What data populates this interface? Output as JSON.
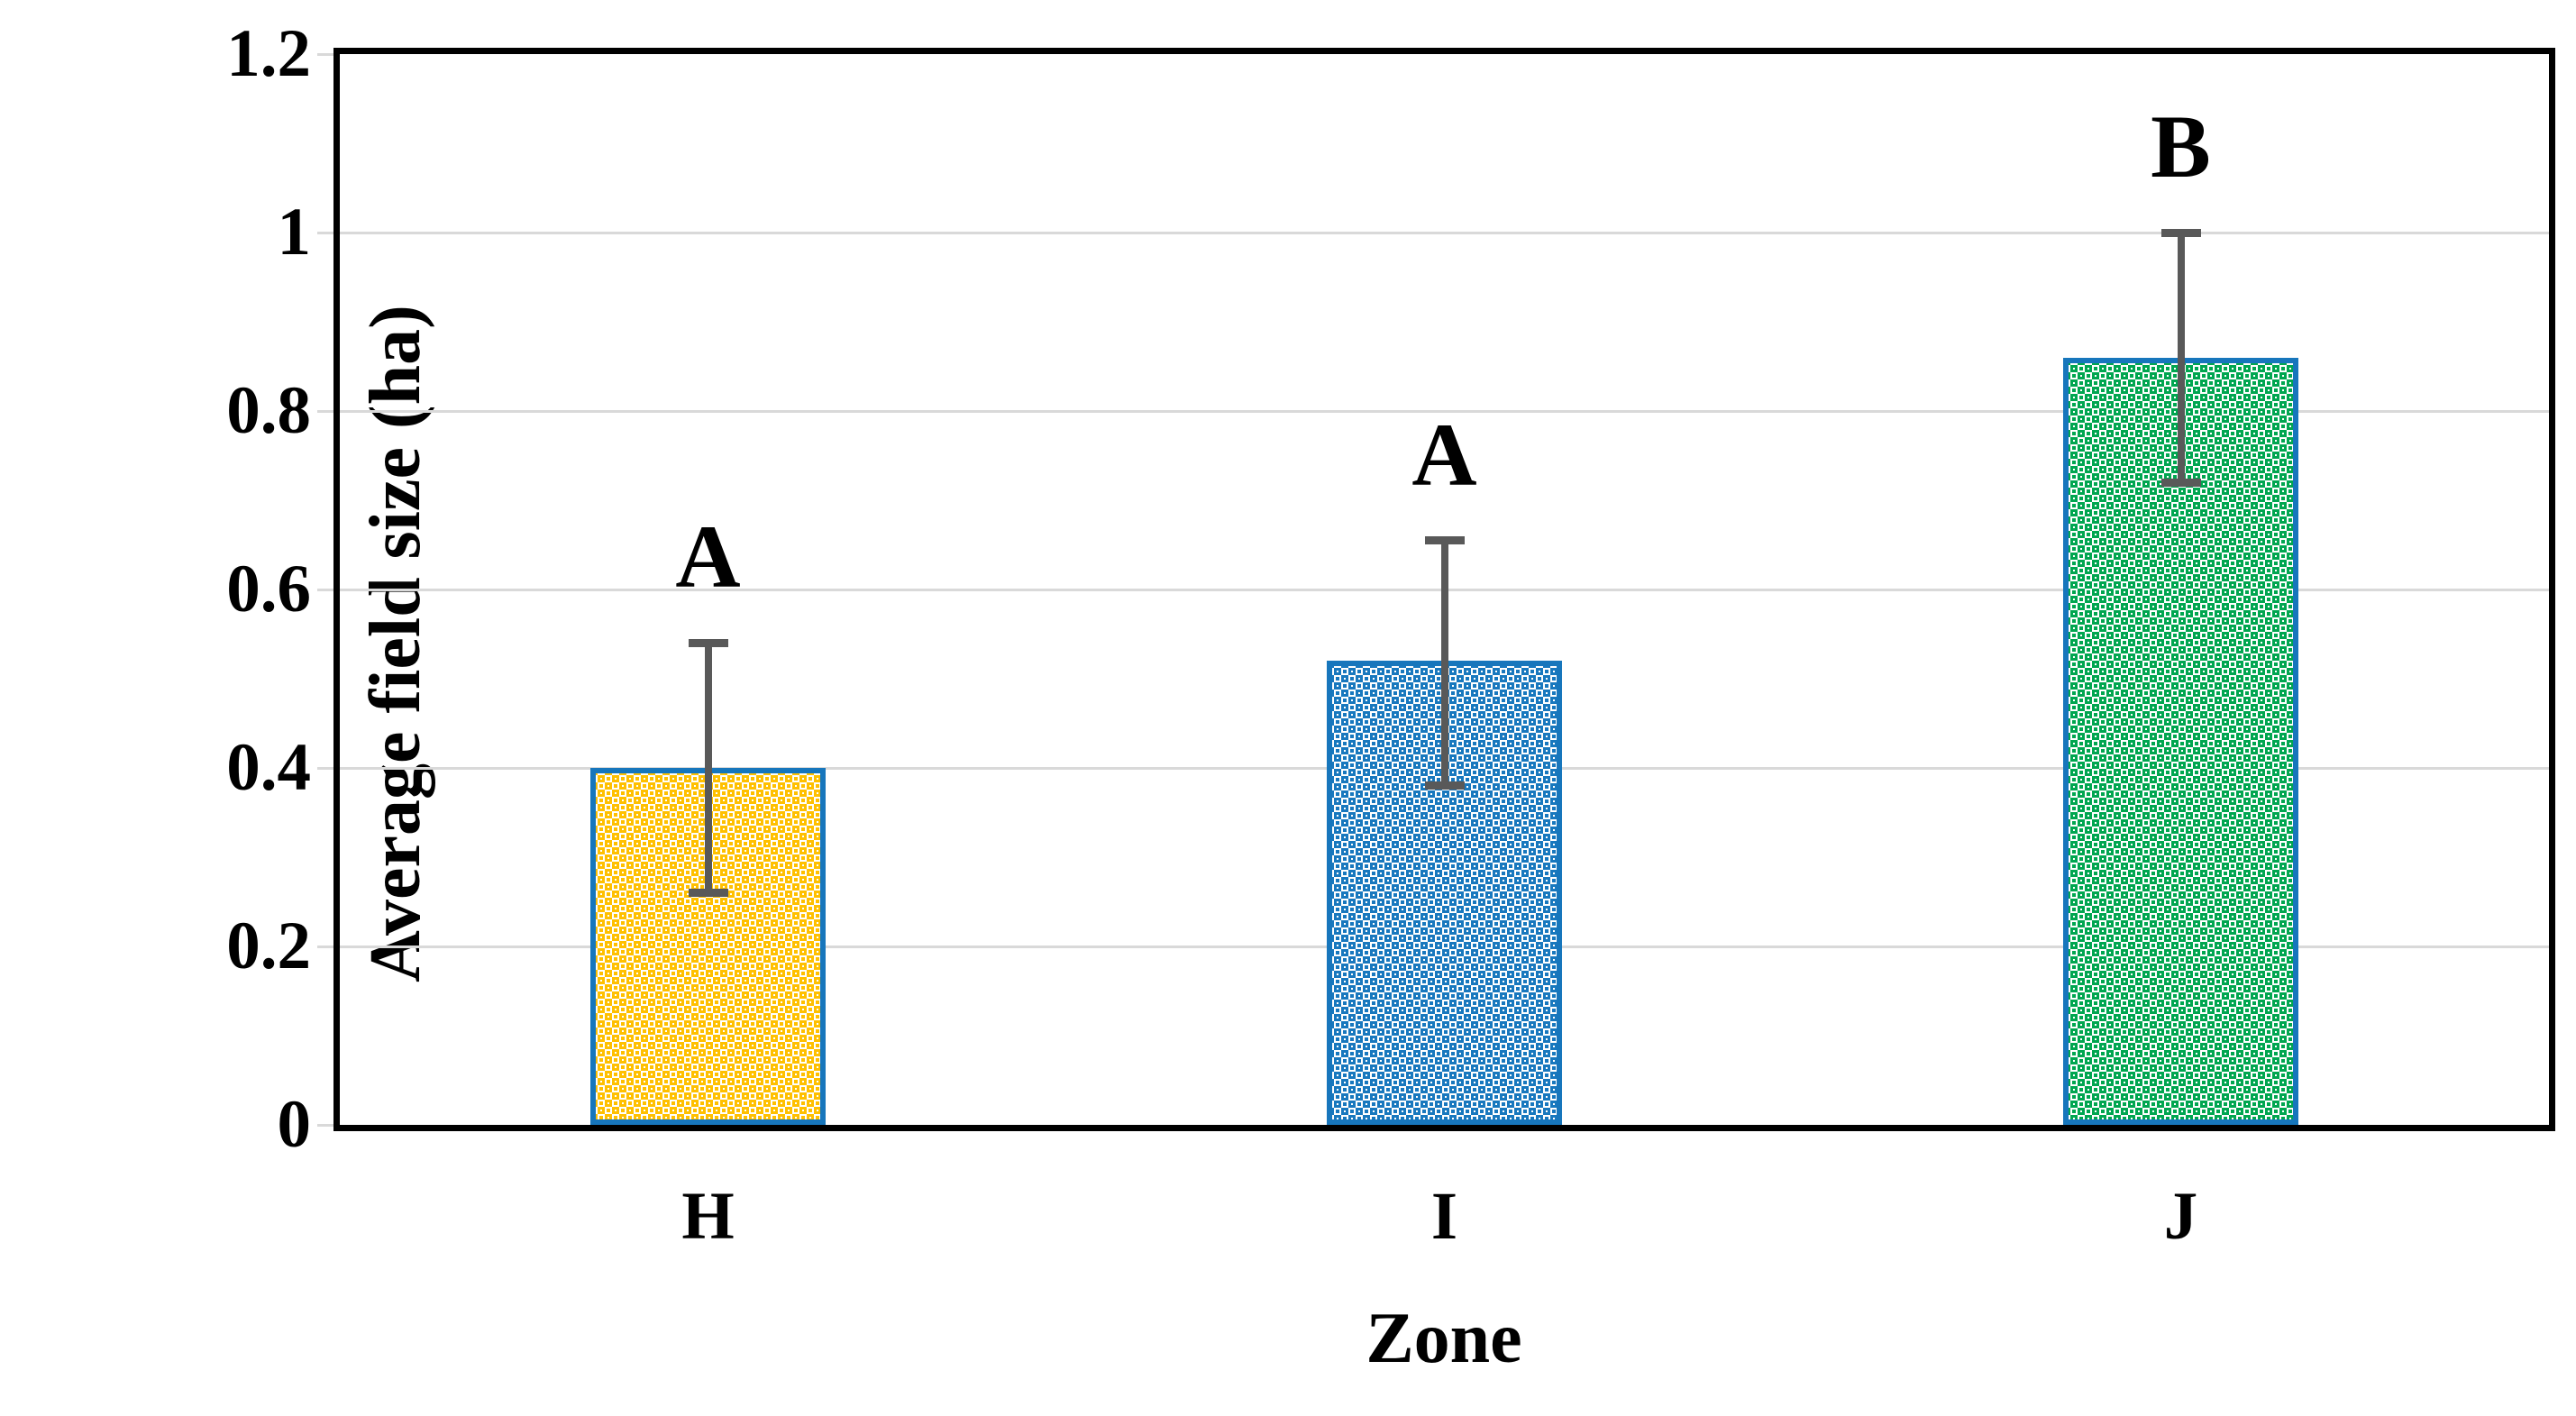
{
  "chart_data": {
    "type": "bar",
    "title": "",
    "xlabel": "Zone",
    "ylabel": "Average field size (ha)",
    "ylim": [
      0,
      1.2
    ],
    "ytick_values": [
      0,
      0.2,
      0.4,
      0.6,
      0.8,
      1,
      1.2
    ],
    "ytick_labels": [
      "0",
      "0.2",
      "0.4",
      "0.6",
      "0.8",
      "1",
      "1.2"
    ],
    "categories": [
      "H",
      "I",
      "J"
    ],
    "values": [
      0.4,
      0.52,
      0.86
    ],
    "error_low": [
      0.26,
      0.38,
      0.72
    ],
    "error_high": [
      0.54,
      0.655,
      1.0
    ],
    "sig_letters": [
      "A",
      "A",
      "B"
    ],
    "grid": true,
    "legend": false,
    "pattern": "dotted-diamond",
    "colors": {
      "bar_fills": [
        "#FFC000",
        "#1878BE",
        "#00A650"
      ],
      "bar_border": "#1776BC",
      "error_bar": "#595959",
      "gridline": "#D9D9D9",
      "axis_border": "#000000",
      "text": "#000000",
      "background": "#FFFFFF"
    }
  }
}
